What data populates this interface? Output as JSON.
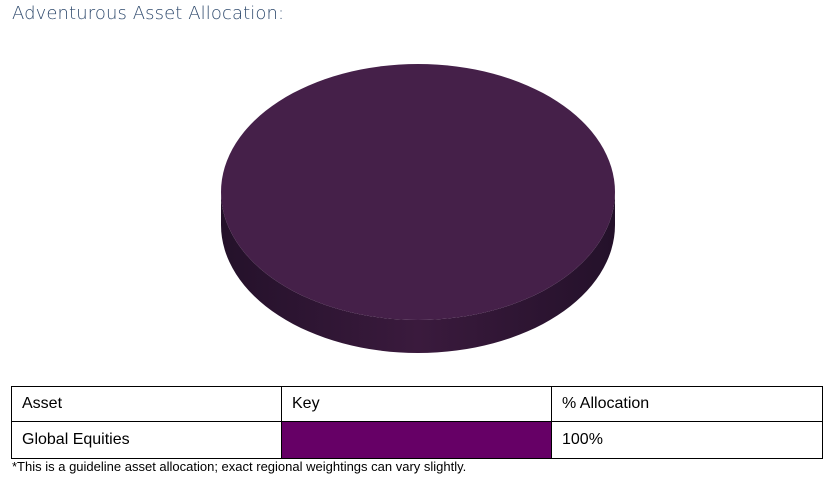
{
  "page": {
    "title": "Adventurous Asset Allocation:",
    "footnote": "*This is a guideline asset allocation; exact regional weightings can vary slightly."
  },
  "table": {
    "headers": [
      "Asset",
      "Key",
      "% Allocation"
    ],
    "rows": [
      {
        "asset": "Global Equities",
        "key_color": "#660066",
        "allocation": "100%"
      }
    ]
  },
  "chart_data": {
    "type": "pie",
    "style": "3d",
    "categories": [
      "Global Equities"
    ],
    "values": [
      100
    ],
    "colors": {
      "top": "#452049",
      "side_light": "#3a1a3d",
      "side_dark": "#24112a"
    },
    "title": "",
    "legend": "none"
  }
}
